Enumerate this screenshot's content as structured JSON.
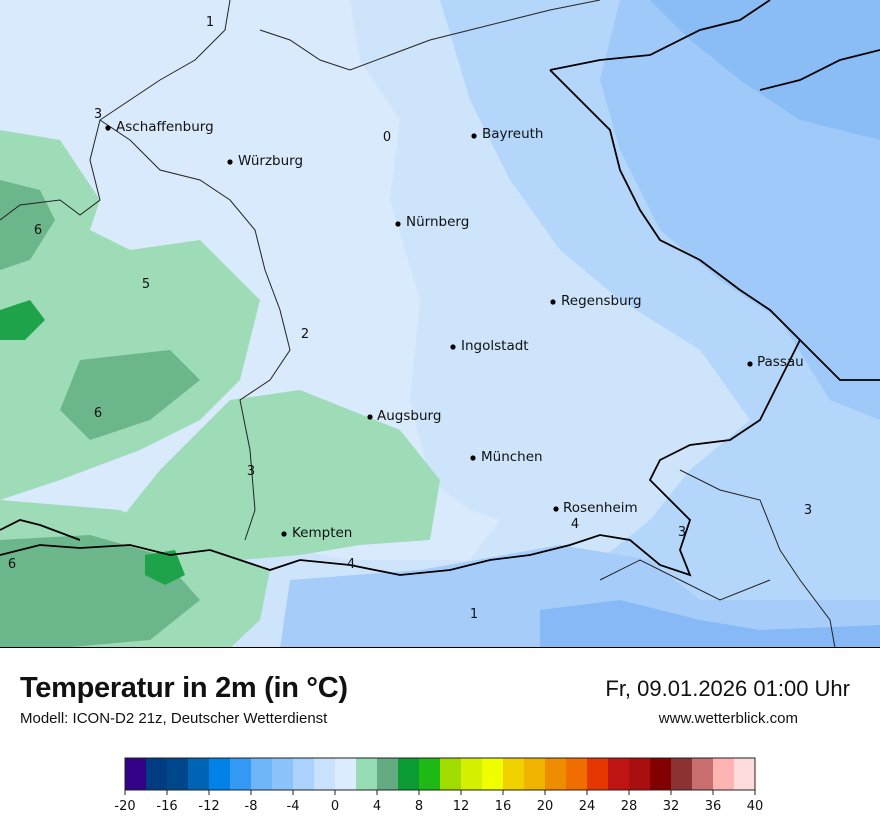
{
  "map": {
    "cities": [
      {
        "name": "Aschaffenburg"
      },
      {
        "name": "Würzburg"
      },
      {
        "name": "Bayreuth"
      },
      {
        "name": "Nürnberg"
      },
      {
        "name": "Regensburg"
      },
      {
        "name": "Ingolstadt"
      },
      {
        "name": "Passau"
      },
      {
        "name": "Augsburg"
      },
      {
        "name": "München"
      },
      {
        "name": "Rosenheim"
      },
      {
        "name": "Kempten"
      }
    ],
    "isotherm_labels": [
      "1",
      "3",
      "0",
      "6",
      "5",
      "2",
      "6",
      "3",
      "6",
      "4",
      "4",
      "3",
      "3",
      "1"
    ]
  },
  "footer": {
    "title": "Temperatur in 2m (in °C)",
    "model": "Modell: ICON-D2 21z, Deutscher Wetterdienst",
    "datetime": "Fr, 09.01.2026 01:00 Uhr",
    "website": "www.wetterblick.com"
  },
  "legend": {
    "min": -20,
    "max": 40,
    "step": 2,
    "tick_labels": [
      "-20",
      "-16",
      "-12",
      "-8",
      "-4",
      "0",
      "4",
      "8",
      "12",
      "16",
      "20",
      "24",
      "28",
      "32",
      "36",
      "40"
    ],
    "colors": [
      "#330088",
      "#003c82",
      "#00468c",
      "#0064b4",
      "#0082e6",
      "#3299f5",
      "#6eb5fa",
      "#8cc3fa",
      "#aad2fc",
      "#c8e1fd",
      "#dcebfd",
      "#96dcb4",
      "#64aa82",
      "#0a9b32",
      "#1eb914",
      "#a0dc00",
      "#d2f000",
      "#f0ff00",
      "#f0d200",
      "#f0b400",
      "#f08c00",
      "#f06e00",
      "#e63700",
      "#be1414",
      "#aa0f0f",
      "#820000",
      "#8c3232",
      "#c86e6e",
      "#ffb4b4",
      "#ffdcdc"
    ]
  }
}
